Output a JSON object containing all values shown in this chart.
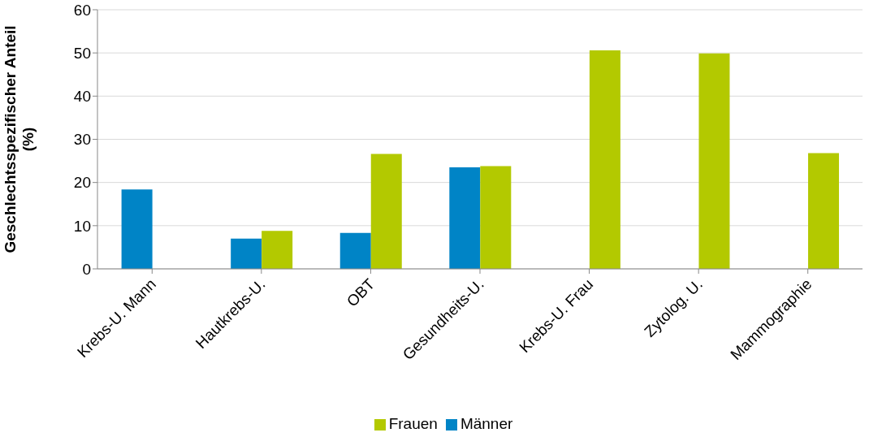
{
  "chart_data": {
    "type": "bar",
    "ylabel": "Geschlechtsspezifischer Anteil (%)",
    "categories": [
      "Krebs-U. Mann",
      "Hautkrebs-U.",
      "OBT",
      "Gesundheits-U.",
      "Krebs-U. Frau",
      "Zytolog. U.",
      "Mammographie"
    ],
    "series": [
      {
        "name": "Männer",
        "color": "#0084c6",
        "values": [
          18.4,
          7.0,
          8.3,
          23.5,
          null,
          null,
          null
        ]
      },
      {
        "name": "Frauen",
        "color": "#b3c900",
        "values": [
          null,
          8.8,
          26.6,
          23.8,
          50.6,
          49.9,
          26.8
        ]
      }
    ],
    "ylim": [
      0,
      60
    ],
    "yticks": [
      0,
      10,
      20,
      30,
      40,
      50,
      60
    ],
    "grid": "y",
    "legend": "bottom"
  }
}
